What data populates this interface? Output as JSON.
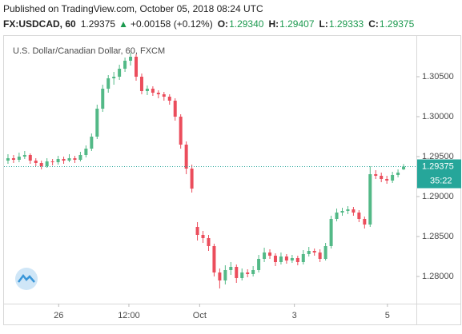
{
  "header": {
    "published": "Published on TradingView.com, October 05, 2018 08:24 UTC",
    "symbol": "FX:USDCAD, 60",
    "last": "1.29375",
    "arrow": "▲",
    "change": "+0.00158 (+0.12%)",
    "ohlc": [
      {
        "key": "O:",
        "value": "1.29340"
      },
      {
        "key": "H:",
        "value": "1.29407"
      },
      {
        "key": "L:",
        "value": "1.29333"
      },
      {
        "key": "C:",
        "value": "1.29375"
      }
    ]
  },
  "chart_data": {
    "type": "candlestick",
    "title": "U.S. Dollar/Canadian Dollar, 60, FXCM",
    "up_color": "#53b987",
    "down_color": "#eb4d5c",
    "xlim": [
      -1,
      72
    ],
    "xticks": [
      {
        "value": 9.1,
        "label": "26"
      },
      {
        "value": 21.7,
        "label": "12:00"
      },
      {
        "value": 34.4,
        "label": "Oct"
      },
      {
        "value": 51.4,
        "label": "3"
      },
      {
        "value": 68.1,
        "label": "5"
      }
    ],
    "ylim": [
      1.2766,
      1.3102
    ],
    "yticks": [
      {
        "value": 1.28,
        "label": "1.28000"
      },
      {
        "value": 1.285,
        "label": "1.28500"
      },
      {
        "value": 1.29,
        "label": "1.29000"
      },
      {
        "value": 1.295,
        "label": "1.29500"
      },
      {
        "value": 1.3,
        "label": "1.30000"
      },
      {
        "value": 1.305,
        "label": "1.30500"
      }
    ],
    "last_price": {
      "value": 1.29375,
      "label": "1.29375"
    },
    "countdown": "35:22",
    "open": [
      1.2945,
      1.2948,
      1.2946,
      1.295,
      1.2952,
      1.2945,
      1.2942,
      1.2938,
      1.2944,
      1.2943,
      1.2947,
      1.2945,
      1.2948,
      1.2946,
      1.2952,
      1.296,
      1.2975,
      1.301,
      1.3035,
      1.3048,
      1.305,
      1.306,
      1.307,
      1.3075,
      1.305,
      1.3032,
      1.3035,
      1.303,
      1.3028,
      1.3025,
      1.302,
      1.3,
      1.2965,
      1.2935,
      1.2862,
      1.2852,
      1.2848,
      1.2838,
      1.2805,
      1.2795,
      1.2808,
      1.2812,
      1.2798,
      1.2805,
      1.2803,
      1.2808,
      1.2822,
      1.283,
      1.2826,
      1.2818,
      1.2825,
      1.282,
      1.2823,
      1.2818,
      1.2828,
      1.2832,
      1.283,
      1.2822,
      1.2838,
      1.2872,
      1.288,
      1.2882,
      1.2884,
      1.288,
      1.2872,
      1.2865,
      1.2928,
      1.2926,
      1.2922,
      1.292,
      1.2927,
      1.2934
    ],
    "high": [
      1.2953,
      1.2952,
      1.2955,
      1.2957,
      1.2954,
      1.2948,
      1.2945,
      1.2948,
      1.2947,
      1.2951,
      1.295,
      1.2953,
      1.2951,
      1.2956,
      1.2964,
      1.2979,
      1.3015,
      1.304,
      1.3052,
      1.3056,
      1.3065,
      1.3074,
      1.308,
      1.3078,
      1.3054,
      1.3039,
      1.3038,
      1.3033,
      1.3031,
      1.3028,
      1.3023,
      1.3003,
      1.2969,
      1.294,
      1.2868,
      1.2857,
      1.2852,
      1.2841,
      1.281,
      1.2814,
      1.2818,
      1.2815,
      1.281,
      1.2809,
      1.2813,
      1.2827,
      1.2836,
      1.2834,
      1.2829,
      1.283,
      1.2828,
      1.2827,
      1.2826,
      1.2833,
      1.2837,
      1.2835,
      1.2834,
      1.2842,
      1.2876,
      1.2885,
      1.2886,
      1.2888,
      1.2887,
      1.2883,
      1.2875,
      1.2938,
      1.2933,
      1.293,
      1.2926,
      1.2931,
      1.2934,
      1.29407
    ],
    "low": [
      1.2941,
      1.2942,
      1.2943,
      1.2947,
      1.2941,
      1.2938,
      1.2934,
      1.2936,
      1.2939,
      1.294,
      1.2941,
      1.2943,
      1.2942,
      1.2944,
      1.2949,
      1.2957,
      1.2972,
      1.3006,
      1.303,
      1.304,
      1.3046,
      1.3056,
      1.3064,
      1.3045,
      1.3028,
      1.3027,
      1.3026,
      1.3023,
      1.302,
      1.3015,
      1.2995,
      1.296,
      1.2928,
      1.2905,
      1.2845,
      1.2842,
      1.2832,
      1.28,
      1.2785,
      1.279,
      1.2802,
      1.2792,
      1.2795,
      1.2799,
      1.28,
      1.2805,
      1.2818,
      1.2822,
      1.2813,
      1.2815,
      1.2816,
      1.2817,
      1.2814,
      1.2815,
      1.2825,
      1.2826,
      1.2818,
      1.282,
      1.2835,
      1.2869,
      1.2876,
      1.2878,
      1.2876,
      1.2868,
      1.286,
      1.2862,
      1.2922,
      1.2918,
      1.2916,
      1.2917,
      1.2924,
      1.29333
    ],
    "close": [
      1.2948,
      1.2946,
      1.295,
      1.2952,
      1.2945,
      1.2942,
      1.2938,
      1.2944,
      1.2943,
      1.2947,
      1.2945,
      1.2948,
      1.2946,
      1.2952,
      1.296,
      1.2975,
      1.301,
      1.3035,
      1.3048,
      1.305,
      1.306,
      1.307,
      1.3075,
      1.305,
      1.3032,
      1.3035,
      1.303,
      1.3028,
      1.3025,
      1.302,
      1.3,
      1.2965,
      1.2935,
      1.291,
      1.2852,
      1.2848,
      1.2838,
      1.2805,
      1.2795,
      1.2808,
      1.2812,
      1.2798,
      1.2805,
      1.2803,
      1.2808,
      1.2822,
      1.283,
      1.2826,
      1.2818,
      1.2825,
      1.282,
      1.2823,
      1.2818,
      1.2828,
      1.2832,
      1.283,
      1.2822,
      1.2838,
      1.2872,
      1.288,
      1.2882,
      1.2884,
      1.288,
      1.2872,
      1.2865,
      1.2928,
      1.2926,
      1.2922,
      1.292,
      1.2927,
      1.293,
      1.29375
    ]
  }
}
